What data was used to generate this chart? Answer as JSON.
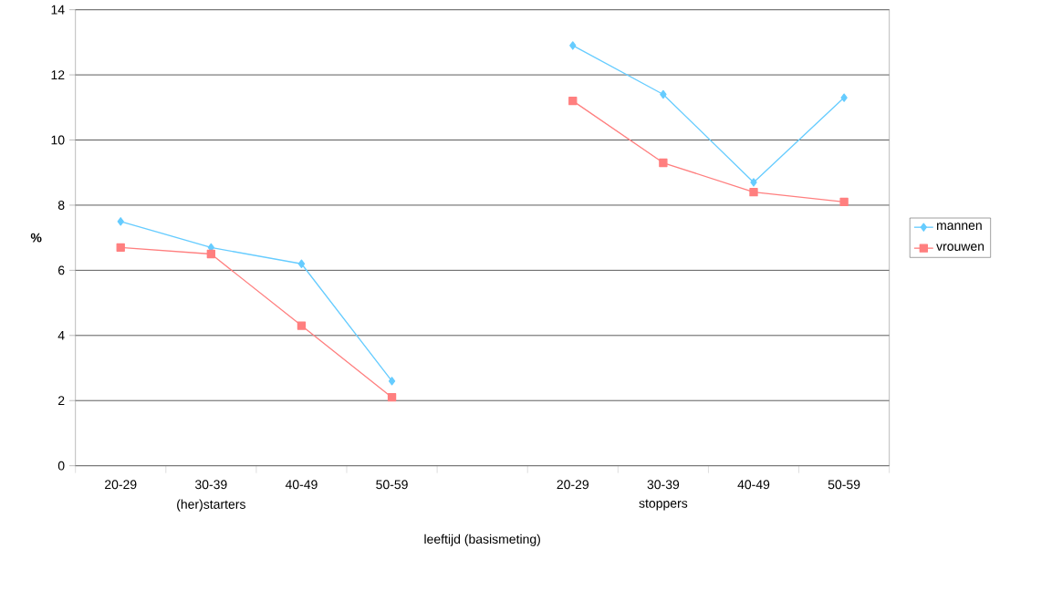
{
  "chart_data": {
    "type": "line",
    "ylabel": "%",
    "xlabel": "leeftijd (basismeting)",
    "categories": [
      "20-29",
      "30-39",
      "40-49",
      "50-59",
      null,
      "20-29",
      "30-39",
      "40-49",
      "50-59"
    ],
    "series": [
      {
        "name": "mannen",
        "color": "#66ccff",
        "marker": "diamond",
        "values": [
          7.5,
          6.7,
          6.2,
          2.6,
          null,
          12.9,
          11.4,
          8.7,
          11.3
        ]
      },
      {
        "name": "vrouwen",
        "color": "#ff7f7f",
        "marker": "square",
        "values": [
          6.7,
          6.5,
          4.3,
          2.1,
          null,
          11.2,
          9.3,
          8.4,
          8.1
        ]
      }
    ],
    "annotations": [
      "(her)starters",
      "stoppers"
    ],
    "ylim": [
      0,
      14
    ],
    "yticks": [
      0,
      2,
      4,
      6,
      8,
      10,
      12,
      14
    ],
    "grid": "y",
    "legend": "right",
    "line_style": "solid"
  }
}
